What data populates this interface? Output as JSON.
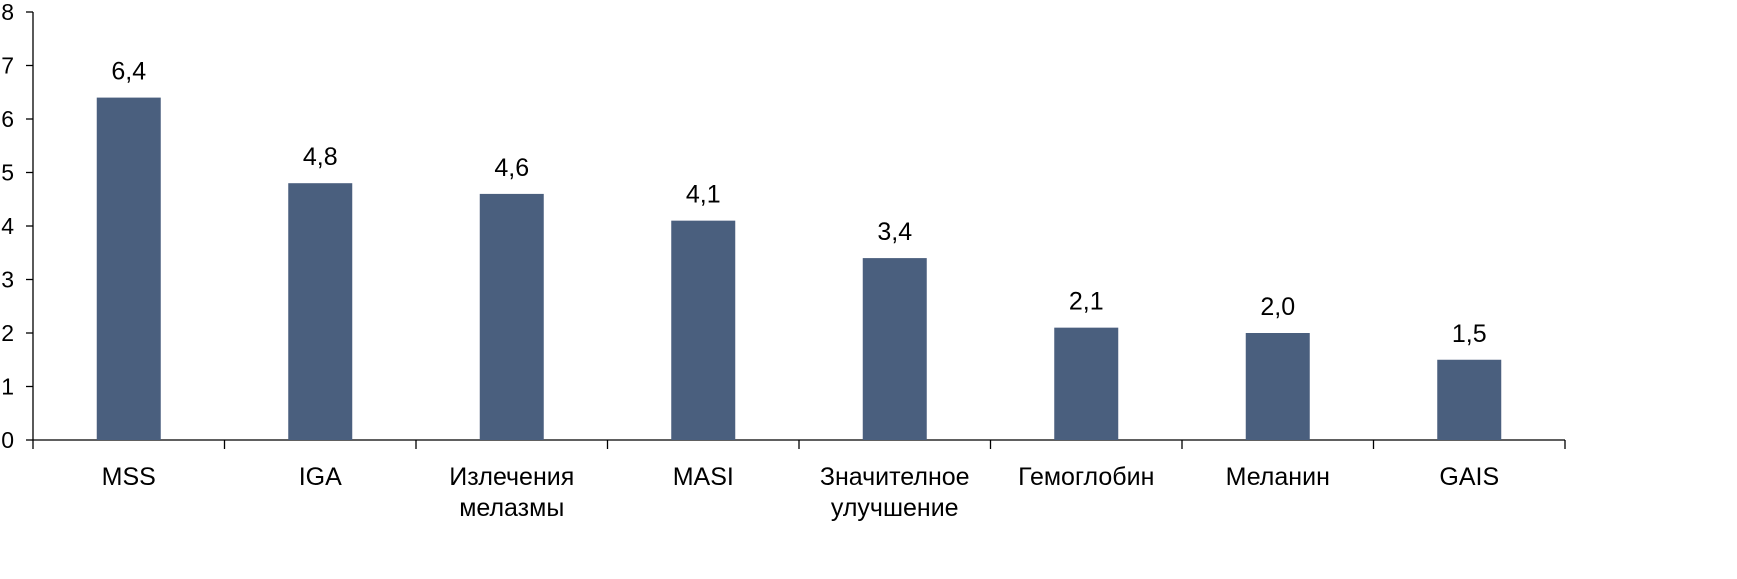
{
  "chart_data": {
    "type": "bar",
    "categories": [
      "MSS",
      "IGA",
      "Излечения\nмелазмы",
      "MASI",
      "Значителное\nулучшение",
      "Гемоглобин",
      "Меланин",
      "GAIS"
    ],
    "values": [
      6.4,
      4.8,
      4.6,
      4.1,
      3.4,
      2.1,
      2.0,
      1.5
    ],
    "data_labels": [
      "6,4",
      "4,8",
      "4,6",
      "4,1",
      "3,4",
      "2,1",
      "2,0",
      "1,5"
    ],
    "y_ticks": [
      "0",
      "1",
      "2",
      "3",
      "4",
      "5",
      "6",
      "7",
      "8"
    ],
    "ylim": [
      0,
      8
    ],
    "title": "",
    "xlabel": "",
    "ylabel": "",
    "grid": false,
    "legend": "none",
    "bar_color": "#4a5f7e"
  }
}
